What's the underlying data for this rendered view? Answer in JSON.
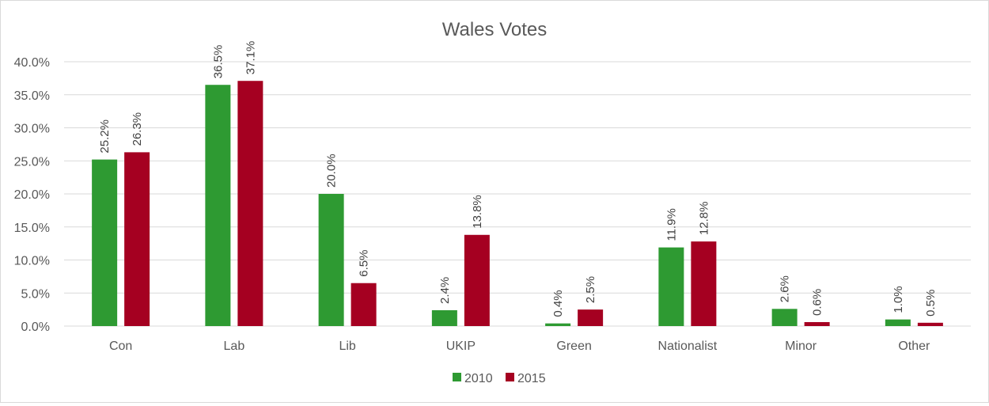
{
  "chart_data": {
    "type": "bar",
    "title": "Wales Votes",
    "xlabel": "",
    "ylabel": "",
    "ylim": [
      0,
      40
    ],
    "y_ticks": [
      "0.0%",
      "5.0%",
      "10.0%",
      "15.0%",
      "20.0%",
      "25.0%",
      "30.0%",
      "35.0%",
      "40.0%"
    ],
    "grid": true,
    "legend_position": "bottom",
    "categories": [
      "Con",
      "Lab",
      "Lib",
      "UKIP",
      "Green",
      "Nationalist",
      "Minor",
      "Other"
    ],
    "series": [
      {
        "name": "2010",
        "color": "#2e9a32",
        "values": [
          25.2,
          36.5,
          20.0,
          2.4,
          0.4,
          11.9,
          2.6,
          1.0
        ],
        "labels": [
          "25.2%",
          "36.5%",
          "20.0%",
          "2.4%",
          "0.4%",
          "11.9%",
          "2.6%",
          "1.0%"
        ]
      },
      {
        "name": "2015",
        "color": "#a50021",
        "values": [
          26.3,
          37.1,
          6.5,
          13.8,
          2.5,
          12.8,
          0.6,
          0.5
        ],
        "labels": [
          "26.3%",
          "37.1%",
          "6.5%",
          "13.8%",
          "2.5%",
          "12.8%",
          "0.6%",
          "0.5%"
        ]
      }
    ]
  }
}
